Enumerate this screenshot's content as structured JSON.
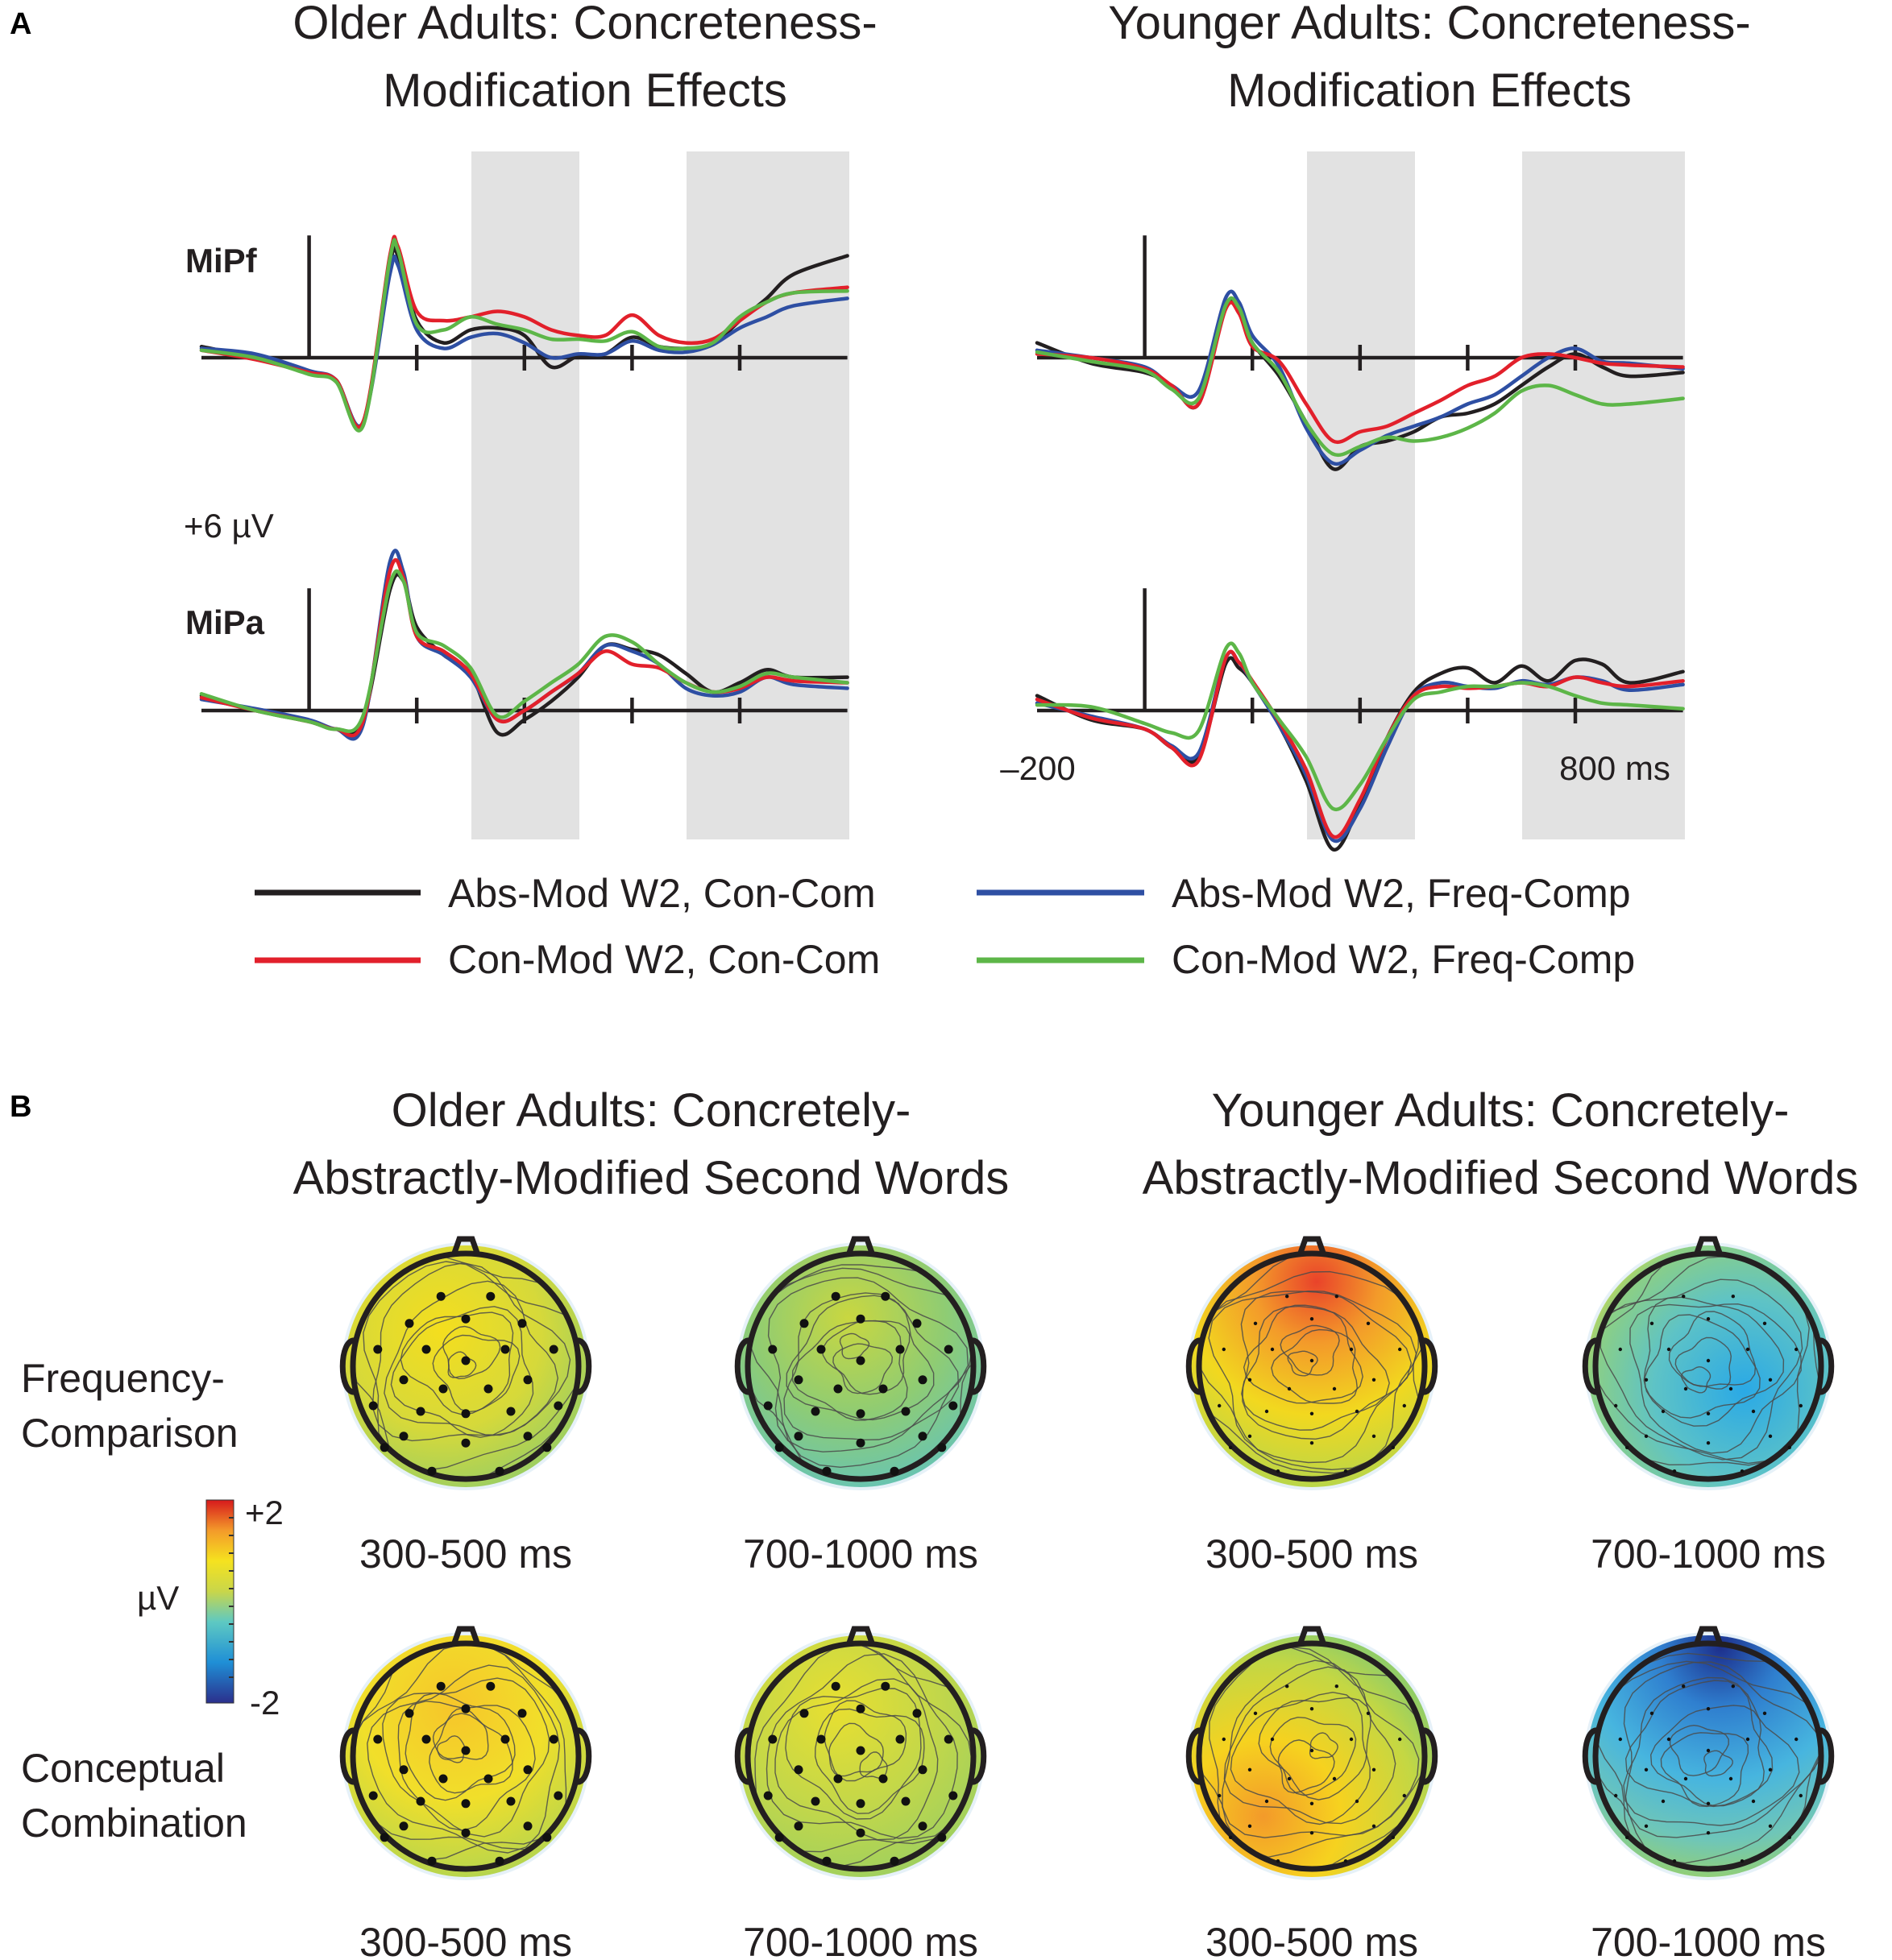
{
  "panel_a": {
    "letter": "A",
    "older_title": [
      "Older Adults: Concreteness-",
      "Modification Effects"
    ],
    "younger_title": [
      "Younger Adults: Concreteness-",
      "Modification Effects"
    ],
    "channel_top": "MiPf",
    "channel_bottom": "MiPa",
    "scale_label": "+6 µV",
    "x_start_label": "–200",
    "x_end_label": "800 ms"
  },
  "legend": [
    {
      "label": "Abs-Mod W2,  Con-Com",
      "color": "#231f20"
    },
    {
      "label": "Abs-Mod W2,   Freq-Comp",
      "color": "#2e4fa3"
    },
    {
      "label": "Con-Mod W2, Con-Com",
      "color": "#e2202b"
    },
    {
      "label": "Con-Mod W2,  Freq-Comp",
      "color": "#5db648"
    }
  ],
  "panel_b": {
    "letter": "B",
    "older_title": [
      "Older Adults: Concretely-",
      "Abstractly-Modified Second Words"
    ],
    "younger_title": [
      "Younger Adults: Concretely-",
      "Abstractly-Modified Second Words"
    ],
    "row_labels": [
      [
        "Frequency-",
        "Comparison"
      ],
      [
        "Conceptual",
        "Combination"
      ]
    ],
    "window_labels": [
      "300-500 ms",
      "700-1000 ms",
      "300-500 ms",
      "700-1000 ms",
      "300-500 ms",
      "700-1000 ms",
      "300-500 ms",
      "700-1000 ms"
    ],
    "colorbar": {
      "unit": "µV",
      "max_label": "+2",
      "min_label": "-2"
    }
  },
  "chart_data": [
    {
      "type": "line",
      "title": "Older Adults: Concreteness-Modification Effects",
      "channel": "MiPf",
      "xlabel": "ms",
      "xlim": [
        -200,
        1000
      ],
      "x_ticks": [
        0,
        200,
        400,
        600,
        800
      ],
      "ylabel": "µV",
      "scale_bar_uv": 6,
      "shaded_windows_ms": [
        [
          300,
          500
        ],
        [
          700,
          1000
        ]
      ],
      "x": [
        -200,
        -100,
        0,
        50,
        100,
        150,
        165,
        200,
        250,
        300,
        350,
        400,
        450,
        500,
        550,
        600,
        650,
        700,
        750,
        800,
        850,
        900,
        1000
      ],
      "series": [
        {
          "name": "Abs-Mod W2, Con-Com",
          "values": [
            0.6,
            0,
            -0.8,
            -1.2,
            -3.5,
            5,
            5.5,
            2,
            0.8,
            1.5,
            1.6,
            1.2,
            -0.5,
            0.1,
            0.2,
            1.1,
            0.6,
            0.5,
            0.7,
            2,
            3.2,
            4.5,
            5.5
          ]
        },
        {
          "name": "Abs-Mod W2, Freq-Comp",
          "values": [
            0.5,
            0.2,
            -0.7,
            -1.2,
            -3.5,
            4.5,
            5,
            1.5,
            0.5,
            1.1,
            1.3,
            0.8,
            0,
            0.2,
            0.2,
            0.9,
            0.4,
            0.3,
            0.7,
            1.6,
            2.2,
            2.8,
            3.2
          ]
        },
        {
          "name": "Con-Mod W2, Con-Com",
          "values": [
            0.4,
            -0.1,
            -0.8,
            -1.2,
            -3.5,
            5.5,
            6,
            2.5,
            2,
            2.2,
            2.5,
            2.2,
            1.5,
            1.2,
            1.2,
            2.3,
            1.2,
            0.8,
            1,
            2,
            3,
            3.5,
            3.8
          ]
        },
        {
          "name": "Con-Mod W2, Freq-Comp",
          "values": [
            0.4,
            0,
            -0.9,
            -1.3,
            -3.7,
            5.3,
            5.8,
            1.8,
            1.5,
            2.2,
            1.8,
            1.5,
            1,
            1,
            0.9,
            1.4,
            0.6,
            0.5,
            0.8,
            2.2,
            3,
            3.5,
            3.6
          ]
        }
      ]
    },
    {
      "type": "line",
      "title": "Older Adults: Concreteness-Modification Effects",
      "channel": "MiPa",
      "xlabel": "ms",
      "xlim": [
        -200,
        1000
      ],
      "x_ticks": [
        0,
        200,
        400,
        600,
        800
      ],
      "ylabel": "µV",
      "scale_bar_uv": 6,
      "shaded_windows_ms": [
        [
          300,
          500
        ],
        [
          700,
          1000
        ]
      ],
      "x": [
        -200,
        -100,
        0,
        50,
        100,
        150,
        175,
        200,
        250,
        300,
        350,
        400,
        450,
        500,
        550,
        600,
        650,
        700,
        750,
        800,
        850,
        900,
        1000
      ],
      "series": [
        {
          "name": "Abs-Mod W2, Con-Com",
          "values": [
            0.8,
            0,
            -0.6,
            -1,
            -0.5,
            6.5,
            7,
            4.5,
            3,
            2,
            -1.2,
            -0.5,
            0.5,
            1.8,
            3.5,
            3.3,
            3,
            2,
            1,
            1.5,
            2.2,
            1.8,
            1.8
          ]
        },
        {
          "name": "Abs-Mod W2, Freq-Comp",
          "values": [
            0.6,
            0.1,
            -0.5,
            -1,
            -0.8,
            8,
            7.5,
            4,
            3,
            1.8,
            -0.5,
            0,
            1,
            2,
            3.5,
            3.2,
            2.5,
            1.2,
            0.8,
            1,
            1.8,
            1.4,
            1.2
          ]
        },
        {
          "name": "Con-Mod W2, Con-Com",
          "values": [
            0.7,
            0,
            -0.6,
            -1,
            -0.6,
            7.5,
            7.2,
            4,
            3.2,
            2,
            -0.5,
            0,
            1,
            2,
            3.2,
            2.5,
            2.3,
            1.5,
            1,
            1.2,
            1.8,
            1.6,
            1.5
          ]
        },
        {
          "name": "Con-Mod W2, Freq-Comp",
          "values": [
            0.9,
            0,
            -0.6,
            -1,
            -0.3,
            6.8,
            7,
            4.2,
            3.5,
            2.3,
            -0.3,
            0.5,
            1.5,
            2.5,
            4,
            3.7,
            2.5,
            1.5,
            1,
            1.3,
            2,
            1.8,
            1.5
          ]
        }
      ]
    },
    {
      "type": "line",
      "title": "Younger Adults: Concreteness-Modification Effects",
      "channel": "MiPf",
      "xlabel": "ms",
      "xlim": [
        -200,
        1000
      ],
      "x_ticks": [
        0,
        200,
        400,
        600,
        800
      ],
      "ylabel": "µV",
      "scale_bar_uv": 6,
      "shaded_windows_ms": [
        [
          300,
          500
        ],
        [
          700,
          1000
        ]
      ],
      "x": [
        -200,
        -100,
        0,
        50,
        100,
        150,
        175,
        200,
        250,
        300,
        350,
        400,
        450,
        500,
        550,
        600,
        650,
        700,
        750,
        800,
        850,
        900,
        1000
      ],
      "series": [
        {
          "name": "Abs-Mod W2, Con-Com",
          "values": [
            0.8,
            -0.3,
            -0.8,
            -1.5,
            -2.5,
            2.8,
            2.5,
            0.8,
            -1,
            -3.5,
            -6,
            -4.8,
            -4.5,
            -4,
            -3.2,
            -3,
            -2.5,
            -1.5,
            -0.5,
            0.2,
            -0.5,
            -1,
            -0.8
          ]
        },
        {
          "name": "Abs-Mod W2, Freq-Comp",
          "values": [
            0.4,
            0,
            -0.5,
            -1.5,
            -1.8,
            3.2,
            3,
            1.2,
            -0.5,
            -3.8,
            -5.7,
            -5,
            -4.2,
            -3.7,
            -3.2,
            -2.5,
            -2,
            -1,
            0,
            0.5,
            -0.2,
            -0.3,
            -0.6
          ]
        },
        {
          "name": "Con-Mod W2, Con-Com",
          "values": [
            0.2,
            0,
            -0.6,
            -1.5,
            -2.5,
            2.6,
            2.4,
            0.6,
            -0.2,
            -2.5,
            -4.5,
            -4,
            -3.7,
            -3,
            -2.3,
            -1.5,
            -1,
            0,
            0.2,
            0,
            -0.3,
            -0.4,
            -0.5
          ]
        },
        {
          "name": "Con-Mod W2, Freq-Comp",
          "values": [
            0.3,
            -0.2,
            -0.7,
            -1.7,
            -2.2,
            2.8,
            2.7,
            0.8,
            -0.8,
            -3.5,
            -5.2,
            -4.8,
            -4.3,
            -4.5,
            -4.3,
            -3.8,
            -3,
            -1.8,
            -1.5,
            -2,
            -2.5,
            -2.5,
            -2.2
          ]
        }
      ]
    },
    {
      "type": "line",
      "title": "Younger Adults: Concreteness-Modification Effects",
      "channel": "MiPa",
      "xlabel": "ms",
      "xlim": [
        -200,
        1000
      ],
      "x_ticks": [
        0,
        200,
        400,
        600,
        800
      ],
      "ylabel": "µV",
      "scale_bar_uv": 6,
      "shaded_windows_ms": [
        [
          300,
          500
        ],
        [
          700,
          1000
        ]
      ],
      "x": [
        -200,
        -100,
        0,
        50,
        100,
        150,
        175,
        200,
        250,
        300,
        350,
        400,
        450,
        500,
        550,
        600,
        650,
        700,
        750,
        800,
        850,
        900,
        1000
      ],
      "series": [
        {
          "name": "Abs-Mod W2, Con-Com",
          "values": [
            0.8,
            -0.5,
            -1,
            -2,
            -2.5,
            2.5,
            2.3,
            1.5,
            -0.8,
            -3.8,
            -7.5,
            -5,
            -1.5,
            1,
            2,
            2.3,
            1.5,
            2.4,
            1.6,
            2.7,
            2.5,
            1.5,
            2.1
          ]
        },
        {
          "name": "Abs-Mod W2, Freq-Comp",
          "values": [
            0.4,
            -0.3,
            -1,
            -1.9,
            -2.3,
            2.8,
            2.6,
            1.5,
            -0.8,
            -3.5,
            -7,
            -5.3,
            -2,
            0.8,
            1.5,
            1.3,
            1.2,
            1.6,
            1.4,
            1.8,
            1.6,
            1.1,
            1.4
          ]
        },
        {
          "name": "Con-Mod W2, Con-Com",
          "values": [
            0.6,
            -0.4,
            -1,
            -2,
            -2.7,
            2.8,
            2.6,
            1.6,
            -0.6,
            -3.2,
            -6.8,
            -4.8,
            -1.5,
            0.8,
            1.3,
            1.2,
            1.3,
            1.5,
            1.3,
            1.8,
            1.5,
            1.3,
            1.6
          ]
        },
        {
          "name": "Con-Mod W2, Freq-Comp",
          "values": [
            0.3,
            0.2,
            -0.7,
            -1.2,
            -1.1,
            3.3,
            3.1,
            1.5,
            -0.5,
            -2.5,
            -5.3,
            -4,
            -1.5,
            0.6,
            1,
            1.3,
            1.3,
            1.5,
            1.3,
            0.8,
            0.4,
            0.3,
            0.1
          ]
        }
      ]
    }
  ]
}
